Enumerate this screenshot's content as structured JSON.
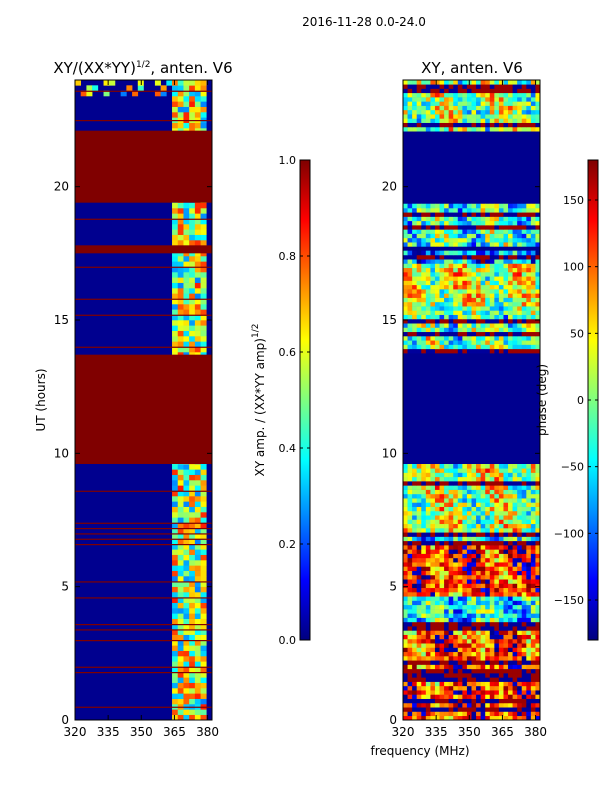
{
  "figure_title": "2016-11-28 0.0-24.0",
  "colors": {
    "jet_stops": [
      "#00007f",
      "#0000ff",
      "#007fff",
      "#00ffff",
      "#7fff7f",
      "#ffff00",
      "#ff7f00",
      "#ff0000",
      "#7f0000"
    ],
    "saturated": "#800000",
    "background": "#00008f"
  },
  "chart_data": [
    {
      "type": "heatmap",
      "title_base": "XY/(XX*YY)",
      "title_sup": "1/2",
      "title_suffix": ", anten. V6",
      "xlabel": "",
      "ylabel": "UT (hours)",
      "xlim": [
        320,
        382
      ],
      "ylim": [
        0,
        24
      ],
      "xticks": [
        "320",
        "335",
        "350",
        "365",
        "380"
      ],
      "xtick_values": [
        320,
        335,
        350,
        365,
        380
      ],
      "yticks": [
        "0",
        "5",
        "10",
        "15",
        "20"
      ],
      "ytick_values": [
        0,
        5,
        10,
        15,
        20
      ],
      "colorbar": {
        "label_base": "XY amp. / (XX*YY amp)",
        "label_sup": "1/2",
        "range": [
          0.0,
          1.0
        ],
        "ticks": [
          "0.0",
          "0.2",
          "0.4",
          "0.6",
          "0.8",
          "1.0"
        ],
        "tick_values": [
          0.0,
          0.2,
          0.4,
          0.6,
          0.8,
          1.0
        ]
      },
      "saturated_bands_hours": [
        [
          9.6,
          13.7
        ],
        [
          19.4,
          22.1
        ],
        [
          17.5,
          17.8
        ]
      ],
      "thin_flag_lines_hours": [
        0.5,
        1.8,
        2.0,
        3.0,
        3.4,
        3.6,
        4.6,
        5.2,
        6.6,
        6.8,
        7.0,
        7.2,
        7.4,
        8.6,
        14.0,
        15.2,
        15.8,
        17.0,
        18.8,
        22.5,
        23.6
      ],
      "active_freq_band_mhz": [
        363,
        381
      ],
      "noise_band_hours": [
        23.3,
        24.0
      ]
    },
    {
      "type": "heatmap",
      "title": "XY, anten. V6",
      "xlabel": "frequency (MHz)",
      "ylabel": "",
      "xlim": [
        320,
        382
      ],
      "ylim": [
        0,
        24
      ],
      "xticks": [
        "320",
        "335",
        "350",
        "365",
        "380"
      ],
      "xtick_values": [
        320,
        335,
        350,
        365,
        380
      ],
      "yticks": [
        "0",
        "5",
        "10",
        "15",
        "20"
      ],
      "ytick_values": [
        0,
        5,
        10,
        15,
        20
      ],
      "colorbar": {
        "label": "phase (deg)",
        "range": [
          -180,
          180
        ],
        "ticks": [
          "−150",
          "−100",
          "−50",
          "0",
          "50",
          "100",
          "150"
        ],
        "tick_values": [
          -150,
          -100,
          -50,
          0,
          50,
          100,
          150
        ]
      },
      "flagged_bands_hours": [
        [
          9.6,
          13.7
        ],
        [
          19.4,
          22.1
        ],
        [
          17.6,
          17.8
        ]
      ],
      "phase_rows": [
        {
          "h0": 0.0,
          "h1": 3.3,
          "phase": 110
        },
        {
          "h0": 3.3,
          "h1": 3.7,
          "phase": -20
        },
        {
          "h0": 3.7,
          "h1": 4.7,
          "phase": -40
        },
        {
          "h0": 4.7,
          "h1": 6.6,
          "phase": 120
        },
        {
          "h0": 6.6,
          "h1": 7.1,
          "phase": -60
        },
        {
          "h0": 7.1,
          "h1": 9.6,
          "phase": 20
        },
        {
          "h0": 13.7,
          "h1": 15.5,
          "phase": -10
        },
        {
          "h0": 15.5,
          "h1": 17.2,
          "phase": 30
        },
        {
          "h0": 17.2,
          "h1": 17.6,
          "phase": -70
        },
        {
          "h0": 17.8,
          "h1": 19.4,
          "phase": -20
        },
        {
          "h0": 22.1,
          "h1": 24.0,
          "phase": 10
        }
      ]
    }
  ]
}
